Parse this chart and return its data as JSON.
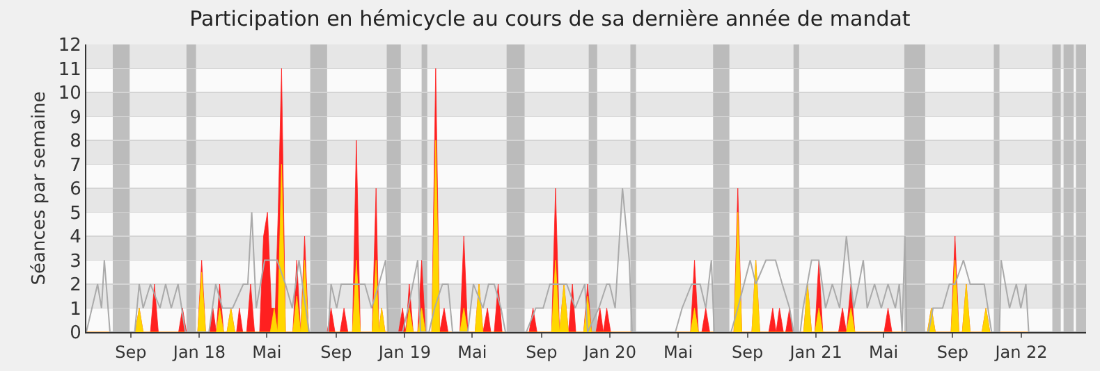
{
  "chart_data": {
    "type": "area",
    "title": "Participation en hémicycle au cours de sa dernière année de mandat",
    "ylabel": "Séances par semaine",
    "xlim": [
      "2017-06-14",
      "2022-04-26"
    ],
    "ylim": [
      0,
      12
    ],
    "xticks": [
      {
        "value": "2017-09-01",
        "label": "Sep"
      },
      {
        "value": "2018-01-01",
        "label": "Jan 18"
      },
      {
        "value": "2018-05-01",
        "label": "Mai"
      },
      {
        "value": "2018-09-01",
        "label": "Sep"
      },
      {
        "value": "2019-01-01",
        "label": "Jan 19"
      },
      {
        "value": "2019-05-01",
        "label": "Mai"
      },
      {
        "value": "2019-09-01",
        "label": "Sep"
      },
      {
        "value": "2020-01-01",
        "label": "Jan 20"
      },
      {
        "value": "2020-05-01",
        "label": "Mai"
      },
      {
        "value": "2020-09-01",
        "label": "Sep"
      },
      {
        "value": "2021-01-01",
        "label": "Jan 21"
      },
      {
        "value": "2021-05-01",
        "label": "Mai"
      },
      {
        "value": "2021-09-01",
        "label": "Sep"
      },
      {
        "value": "2022-01-01",
        "label": "Jan 22"
      }
    ],
    "yticks": [
      0,
      1,
      2,
      3,
      4,
      5,
      6,
      7,
      8,
      9,
      10,
      11,
      12
    ],
    "grid": "y",
    "bands": [
      {
        "axis": "x",
        "from": "2017-07-31",
        "to": "2017-08-30",
        "color": "#b0b0b0"
      },
      {
        "axis": "x",
        "from": "2017-12-09",
        "to": "2017-12-26",
        "color": "#b0b0b0"
      },
      {
        "axis": "x",
        "from": "2018-07-17",
        "to": "2018-08-16",
        "color": "#b0b0b0"
      },
      {
        "axis": "x",
        "from": "2018-11-30",
        "to": "2018-12-25",
        "color": "#b0b0b0"
      },
      {
        "axis": "x",
        "from": "2019-01-31",
        "to": "2019-02-10",
        "color": "#b0b0b0"
      },
      {
        "axis": "x",
        "from": "2019-07-01",
        "to": "2019-08-02",
        "color": "#b0b0b0"
      },
      {
        "axis": "x",
        "from": "2019-11-24",
        "to": "2019-12-09",
        "color": "#b0b0b0"
      },
      {
        "axis": "x",
        "from": "2020-02-06",
        "to": "2020-02-16",
        "color": "#b0b0b0"
      },
      {
        "axis": "x",
        "from": "2020-07-02",
        "to": "2020-07-31",
        "color": "#b0b0b0"
      },
      {
        "axis": "x",
        "from": "2020-11-22",
        "to": "2020-12-02",
        "color": "#b0b0b0"
      },
      {
        "axis": "x",
        "from": "2021-06-07",
        "to": "2021-07-14",
        "color": "#b0b0b0"
      },
      {
        "axis": "x",
        "from": "2021-11-13",
        "to": "2021-11-23",
        "color": "#b0b0b0"
      },
      {
        "axis": "x",
        "from": "2022-02-25",
        "to": "2022-03-12",
        "color": "#b0b0b0"
      },
      {
        "axis": "x",
        "from": "2022-03-17",
        "to": "2022-04-04",
        "color": "#b0b0b0"
      },
      {
        "axis": "x",
        "from": "2022-04-08",
        "to": "2022-04-26",
        "color": "#b0b0b0"
      }
    ],
    "series": [
      {
        "type": "line",
        "color": "#aaaaaa",
        "x": [
          "2017-06-14",
          "2017-07-04",
          "2017-07-11",
          "2017-07-16",
          "2017-07-26",
          "2017-09-08",
          "2017-09-16",
          "2017-09-23",
          "2017-10-06",
          "2017-10-23",
          "2017-11-02",
          "2017-11-12",
          "2017-11-24",
          "2017-12-07",
          "2018-01-18",
          "2018-01-30",
          "2018-02-11",
          "2018-03-01",
          "2018-03-20",
          "2018-03-28",
          "2018-04-04",
          "2018-04-12",
          "2018-04-27",
          "2018-05-19",
          "2018-06-03",
          "2018-06-15",
          "2018-06-27",
          "2018-07-15",
          "2018-08-18",
          "2018-08-23",
          "2018-09-02",
          "2018-09-10",
          "2018-10-22",
          "2018-11-03",
          "2018-11-16",
          "2018-11-28",
          "2018-12-03",
          "2018-12-28",
          "2019-01-07",
          "2019-01-24",
          "2019-01-29",
          "2019-02-13",
          "2019-02-23",
          "2019-03-09",
          "2019-03-19",
          "2019-03-27",
          "2019-04-23",
          "2019-05-03",
          "2019-05-20",
          "2019-05-30",
          "2019-06-09",
          "2019-06-21",
          "2019-06-29",
          "2019-08-05",
          "2019-08-22",
          "2019-09-04",
          "2019-09-16",
          "2019-10-16",
          "2019-10-31",
          "2019-11-17",
          "2019-11-22",
          "2019-12-12",
          "2019-12-26",
          "2019-12-31",
          "2020-01-10",
          "2020-01-23",
          "2020-02-04",
          "2020-02-09",
          "2020-04-26",
          "2020-05-08",
          "2020-05-25",
          "2020-06-09",
          "2020-06-19",
          "2020-06-29",
          "2020-07-04",
          "2020-08-03",
          "2020-08-15",
          "2020-09-06",
          "2020-09-16",
          "2020-10-04",
          "2020-10-21",
          "2020-11-02",
          "2020-11-15",
          "2020-11-22",
          "2020-12-04",
          "2020-12-09",
          "2020-12-24",
          "2021-01-06",
          "2021-01-18",
          "2021-01-30",
          "2021-02-12",
          "2021-02-24",
          "2021-03-09",
          "2021-03-18",
          "2021-03-26",
          "2021-04-02",
          "2021-04-15",
          "2021-04-27",
          "2021-05-09",
          "2021-05-22",
          "2021-05-29",
          "2021-06-03",
          "2021-06-08",
          "2021-06-11",
          "2021-07-20",
          "2021-07-28",
          "2021-08-14",
          "2021-08-26",
          "2021-09-05",
          "2021-09-20",
          "2021-10-02",
          "2021-10-27",
          "2021-11-09",
          "2021-11-23",
          "2021-11-26",
          "2021-12-11",
          "2021-12-23",
          "2021-12-31",
          "2022-01-09",
          "2022-01-14",
          "2022-04-26"
        ],
        "values": [
          0,
          2,
          1,
          3,
          0,
          0,
          2,
          1,
          2,
          1,
          2,
          1,
          2,
          0,
          0,
          2,
          1,
          1,
          2,
          2,
          5,
          1,
          3,
          3,
          2,
          1,
          3,
          0,
          0,
          2,
          1,
          2,
          2,
          1,
          2,
          3,
          0,
          0,
          1,
          3,
          0,
          0,
          1,
          2,
          2,
          0,
          0,
          2,
          1,
          2,
          2,
          1,
          0,
          0,
          1,
          1,
          2,
          2,
          1,
          2,
          0,
          1,
          2,
          2,
          1,
          6,
          3,
          0,
          0,
          1,
          2,
          2,
          1,
          3,
          0,
          0,
          1,
          3,
          2,
          3,
          3,
          2,
          1,
          0,
          0,
          1,
          3,
          3,
          1,
          2,
          1,
          4,
          1,
          2,
          3,
          1,
          2,
          1,
          2,
          1,
          2,
          0,
          4,
          0,
          0,
          1,
          1,
          2,
          2,
          3,
          2,
          2,
          0,
          0,
          3,
          1,
          2,
          1,
          2,
          0,
          0
        ]
      },
      {
        "type": "area",
        "color": "#ff2020",
        "x": [
          "2017-06-14",
          "2017-09-09",
          "2017-09-16",
          "2017-09-23",
          "2017-10-06",
          "2017-10-13",
          "2017-10-20",
          "2017-11-25",
          "2017-12-02",
          "2017-12-09",
          "2017-12-29",
          "2018-01-05",
          "2018-01-12",
          "2018-01-19",
          "2018-01-25",
          "2018-01-31",
          "2018-02-06",
          "2018-02-13",
          "2018-02-19",
          "2018-02-26",
          "2018-03-05",
          "2018-03-08",
          "2018-03-13",
          "2018-03-19",
          "2018-03-26",
          "2018-04-02",
          "2018-04-09",
          "2018-04-18",
          "2018-04-25",
          "2018-05-02",
          "2018-05-09",
          "2018-05-16",
          "2018-05-21",
          "2018-05-27",
          "2018-06-03",
          "2018-06-16",
          "2018-06-23",
          "2018-06-30",
          "2018-07-07",
          "2018-07-14",
          "2018-08-16",
          "2018-08-23",
          "2018-08-30",
          "2018-09-08",
          "2018-09-15",
          "2018-09-22",
          "2018-09-30",
          "2018-10-07",
          "2018-10-14",
          "2018-11-04",
          "2018-11-11",
          "2018-11-16",
          "2018-11-21",
          "2018-11-27",
          "2018-12-21",
          "2018-12-28",
          "2019-01-03",
          "2019-01-09",
          "2019-01-16",
          "2019-01-24",
          "2019-01-31",
          "2019-02-07",
          "2019-02-18",
          "2019-02-25",
          "2019-03-04",
          "2019-03-12",
          "2019-03-19",
          "2019-04-09",
          "2019-04-16",
          "2019-04-23",
          "2019-05-06",
          "2019-05-13",
          "2019-05-20",
          "2019-05-28",
          "2019-06-03",
          "2019-06-09",
          "2019-06-16",
          "2019-06-23",
          "2019-08-10",
          "2019-08-17",
          "2019-08-24",
          "2019-09-19",
          "2019-09-26",
          "2019-10-03",
          "2019-10-11",
          "2019-10-19",
          "2019-10-26",
          "2019-11-01",
          "2019-11-15",
          "2019-11-22",
          "2019-11-29",
          "2019-12-07",
          "2019-12-14",
          "2019-12-20",
          "2019-12-26",
          "2020-01-02",
          "2020-05-23",
          "2020-05-30",
          "2020-06-06",
          "2020-06-12",
          "2020-06-19",
          "2020-06-26",
          "2020-08-08",
          "2020-08-15",
          "2020-08-22",
          "2020-09-09",
          "2020-09-16",
          "2020-09-23",
          "2020-10-09",
          "2020-10-16",
          "2020-10-22",
          "2020-10-28",
          "2020-11-04",
          "2020-11-08",
          "2020-11-15",
          "2020-11-22",
          "2020-12-10",
          "2020-12-17",
          "2020-12-24",
          "2020-12-30",
          "2021-01-06",
          "2021-01-13",
          "2021-02-10",
          "2021-02-17",
          "2021-02-24",
          "2021-03-04",
          "2021-03-11",
          "2021-05-02",
          "2021-05-09",
          "2021-05-16",
          "2021-07-18",
          "2021-07-25",
          "2021-08-01",
          "2021-08-29",
          "2021-09-05",
          "2021-09-12",
          "2021-09-18",
          "2021-09-25",
          "2021-10-02",
          "2021-10-23",
          "2021-10-30",
          "2021-11-06",
          "2022-04-26"
        ],
        "values": [
          0,
          0,
          1,
          0,
          0,
          2,
          0,
          0,
          1,
          0,
          0,
          3,
          0,
          0,
          1,
          0,
          2,
          0,
          0,
          1,
          0,
          0,
          1,
          0,
          0,
          2,
          0,
          0,
          4,
          5,
          1,
          1,
          5,
          11,
          0,
          0,
          3,
          0,
          4,
          0,
          0,
          1,
          0,
          0,
          1,
          0,
          0,
          8,
          0,
          0,
          6,
          0,
          1,
          0,
          0,
          1,
          0,
          2,
          0,
          0,
          3,
          0,
          0,
          11,
          0,
          1,
          0,
          0,
          4,
          0,
          0,
          2,
          0,
          1,
          0,
          0,
          2,
          0,
          0,
          1,
          0,
          0,
          6,
          0,
          2,
          0,
          2,
          0,
          0,
          2,
          0,
          0,
          1,
          0,
          1,
          0,
          0,
          3,
          0,
          0,
          1,
          0,
          0,
          6,
          0,
          0,
          3,
          0,
          0,
          1,
          0,
          1,
          0,
          0,
          1,
          0,
          0,
          2,
          0,
          0,
          3,
          0,
          0,
          1,
          0,
          2,
          0,
          0,
          1,
          0,
          0,
          1,
          0,
          0,
          4,
          0,
          0,
          2,
          0,
          0,
          1,
          0,
          0
        ]
      },
      {
        "type": "area",
        "color": "#ffd700",
        "x": [
          "2017-06-14",
          "2017-09-09",
          "2017-09-16",
          "2017-09-23",
          "2017-12-29",
          "2018-01-05",
          "2018-01-12",
          "2018-01-31",
          "2018-02-06",
          "2018-02-13",
          "2018-02-19",
          "2018-02-26",
          "2018-03-05",
          "2018-05-07",
          "2018-05-14",
          "2018-05-20",
          "2018-05-27",
          "2018-06-03",
          "2018-06-16",
          "2018-06-23",
          "2018-06-30",
          "2018-07-07",
          "2018-07-14",
          "2018-09-30",
          "2018-10-07",
          "2018-10-14",
          "2018-11-04",
          "2018-11-11",
          "2018-11-16",
          "2018-11-21",
          "2018-11-27",
          "2019-01-03",
          "2019-01-09",
          "2019-01-16",
          "2019-01-24",
          "2019-01-31",
          "2019-02-07",
          "2019-02-18",
          "2019-02-25",
          "2019-03-04",
          "2019-04-09",
          "2019-04-16",
          "2019-04-23",
          "2019-05-06",
          "2019-05-13",
          "2019-05-20",
          "2019-09-19",
          "2019-09-26",
          "2019-10-03",
          "2019-10-11",
          "2019-10-19",
          "2019-11-15",
          "2019-11-22",
          "2019-11-29",
          "2020-05-23",
          "2020-05-30",
          "2020-06-06",
          "2020-08-08",
          "2020-08-15",
          "2020-08-22",
          "2020-09-09",
          "2020-09-16",
          "2020-09-23",
          "2020-12-10",
          "2020-12-17",
          "2020-12-24",
          "2020-12-30",
          "2021-01-06",
          "2021-01-13",
          "2021-02-24",
          "2021-03-04",
          "2021-03-11",
          "2021-07-18",
          "2021-07-25",
          "2021-08-01",
          "2021-08-29",
          "2021-09-05",
          "2021-09-12",
          "2021-09-18",
          "2021-09-25",
          "2021-10-02",
          "2021-10-23",
          "2021-10-30",
          "2021-11-06",
          "2022-04-26"
        ],
        "values": [
          0,
          0,
          1,
          0,
          0,
          2.5,
          0,
          0,
          1,
          0,
          0,
          1,
          0,
          0,
          1,
          0,
          7,
          0,
          0,
          1.5,
          0,
          3,
          0,
          0,
          3,
          0,
          0,
          3,
          0,
          1,
          0,
          0,
          1,
          0,
          0,
          1,
          0,
          0,
          8,
          0,
          0,
          1,
          0,
          0,
          2,
          0,
          0,
          3,
          0,
          2,
          0,
          0,
          1.5,
          0,
          0,
          1,
          0,
          0,
          5,
          0,
          0,
          3,
          0,
          0,
          2,
          0,
          0,
          1,
          0,
          0,
          1,
          0,
          0,
          1,
          0,
          0,
          3,
          0,
          0,
          2,
          0,
          0,
          1,
          0,
          0
        ]
      }
    ]
  }
}
